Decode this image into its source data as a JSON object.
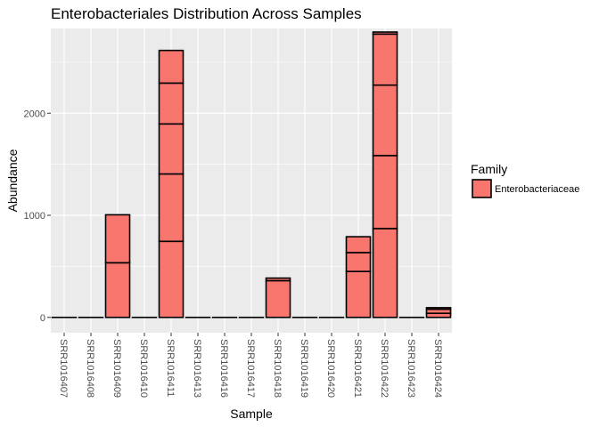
{
  "chart_data": {
    "type": "bar",
    "stacked": true,
    "title": "Enterobacteriales Distribution Across Samples",
    "xlabel": "Sample",
    "ylabel": "Abundance",
    "ylim": [
      -150,
      2830
    ],
    "yticks": [
      0,
      1000,
      2000
    ],
    "grid": true,
    "legend": {
      "title": "Family",
      "placement": "right",
      "entries": [
        "Enterobacteriaceae"
      ]
    },
    "colors": {
      "fill": "#F8766D",
      "outline": "#000000",
      "panel": "#EBEBEB",
      "grid": "#FFFFFF"
    },
    "categories": [
      "SRR1016407",
      "SRR1016408",
      "SRR1016409",
      "SRR1016410",
      "SRR1016411",
      "SRR1016413",
      "SRR1016416",
      "SRR1016417",
      "SRR1016418",
      "SRR1016419",
      "SRR1016420",
      "SRR1016421",
      "SRR1016422",
      "SRR1016423",
      "SRR1016424"
    ],
    "segments": [
      [
        0
      ],
      [
        0
      ],
      [
        535,
        470
      ],
      [
        0
      ],
      [
        745,
        660,
        490,
        400,
        320
      ],
      [
        0
      ],
      [
        0
      ],
      [
        0
      ],
      [
        360,
        25
      ],
      [
        0
      ],
      [
        0
      ],
      [
        450,
        185,
        155
      ],
      [
        870,
        715,
        690,
        500,
        20
      ],
      [
        0
      ],
      [
        40,
        40,
        15
      ]
    ]
  }
}
